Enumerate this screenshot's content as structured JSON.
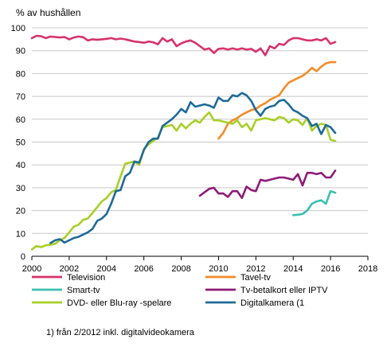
{
  "chart_data": {
    "type": "line",
    "ylabel": "% av hushållen",
    "xlim": [
      2000,
      2018
    ],
    "ylim": [
      0,
      100
    ],
    "xticks": [
      2000,
      2002,
      2004,
      2006,
      2008,
      2010,
      2012,
      2014,
      2016,
      2018
    ],
    "yticks": [
      0,
      10,
      20,
      30,
      40,
      50,
      60,
      70,
      80,
      90,
      100
    ],
    "grid": "horizontal",
    "legend_position": "bottom",
    "footnote": "1) från 2/2012 inkl. digitalvideokamera",
    "series": [
      {
        "name": "Television",
        "color": "#d6336c",
        "x": [
          2000,
          2000.25,
          2000.5,
          2000.75,
          2001,
          2001.25,
          2001.5,
          2001.75,
          2002,
          2002.25,
          2002.5,
          2002.75,
          2003,
          2003.25,
          2003.5,
          2003.75,
          2004,
          2004.25,
          2004.5,
          2004.75,
          2005,
          2005.25,
          2005.5,
          2005.75,
          2006,
          2006.25,
          2006.5,
          2006.75,
          2007,
          2007.25,
          2007.5,
          2007.75,
          2008,
          2008.25,
          2008.5,
          2008.75,
          2009,
          2009.25,
          2009.5,
          2009.75,
          2010,
          2010.25,
          2010.5,
          2010.75,
          2011,
          2011.25,
          2011.5,
          2011.75,
          2012,
          2012.25,
          2012.5,
          2012.75,
          2013,
          2013.25,
          2013.5,
          2013.75,
          2014,
          2014.25,
          2014.5,
          2014.75,
          2015,
          2015.25,
          2015.5,
          2015.75,
          2016,
          2016.25
        ],
        "values": [
          95.5,
          96.5,
          96.3,
          95.5,
          96.2,
          96.0,
          95.8,
          96.0,
          95.0,
          95.8,
          96.2,
          95.9,
          94.5,
          95.0,
          94.8,
          95.0,
          95.2,
          95.5,
          95.0,
          95.3,
          95.0,
          94.5,
          94.0,
          93.8,
          93.5,
          94.0,
          93.7,
          92.8,
          95.5,
          94.0,
          95.0,
          92.0,
          93.2,
          94.0,
          94.5,
          93.5,
          92.0,
          90.5,
          91.0,
          89.0,
          90.8,
          91.0,
          90.5,
          91.0,
          90.5,
          91.0,
          90.5,
          90.8,
          89.5,
          91.0,
          88.0,
          92.0,
          91.0,
          93.0,
          92.5,
          94.5,
          95.5,
          95.5,
          95.0,
          94.5,
          94.5,
          95.0,
          94.5,
          95.5,
          93.0,
          93.8
        ]
      },
      {
        "name": "Tavel-tv",
        "color": "#f28c28",
        "x": [
          2010,
          2010.25,
          2010.5,
          2010.75,
          2011,
          2011.25,
          2011.5,
          2011.75,
          2012,
          2012.25,
          2012.5,
          2012.75,
          2013,
          2013.25,
          2013.5,
          2013.75,
          2014,
          2014.25,
          2014.5,
          2014.75,
          2015,
          2015.25,
          2015.5,
          2015.75,
          2016,
          2016.25
        ],
        "values": [
          51.5,
          54.0,
          58.0,
          59.5,
          60.5,
          62.0,
          63.0,
          64.0,
          64.5,
          66.0,
          67.0,
          68.5,
          69.5,
          70.5,
          73.5,
          76.0,
          77.0,
          78.0,
          79.0,
          80.5,
          82.5,
          81.0,
          83.0,
          84.5,
          85.0,
          85.0
        ]
      },
      {
        "name": "Smart-tv",
        "color": "#3cbfae",
        "x": [
          2014,
          2014.25,
          2014.5,
          2014.75,
          2015,
          2015.25,
          2015.5,
          2015.75,
          2016,
          2016.25
        ],
        "values": [
          18.0,
          18.2,
          18.5,
          20.0,
          23.0,
          24.0,
          24.5,
          23.0,
          28.5,
          27.8
        ]
      },
      {
        "name": "Tv-betalkort eller IPTV",
        "color": "#8e1b78",
        "x": [
          2009,
          2009.25,
          2009.5,
          2009.75,
          2010,
          2010.25,
          2010.5,
          2010.75,
          2011,
          2011.25,
          2011.5,
          2011.75,
          2012,
          2012.25,
          2012.5,
          2012.75,
          2013,
          2013.25,
          2013.5,
          2013.75,
          2014,
          2014.25,
          2014.5,
          2014.75,
          2015,
          2015.25,
          2015.5,
          2015.75,
          2016,
          2016.25
        ],
        "values": [
          26.5,
          28.0,
          29.5,
          30.0,
          27.5,
          27.5,
          26.0,
          28.5,
          28.5,
          25.5,
          30.5,
          29.0,
          28.5,
          33.5,
          33.0,
          33.5,
          34.0,
          34.5,
          34.5,
          34.0,
          33.5,
          36.0,
          31.0,
          36.5,
          36.5,
          36.0,
          36.5,
          34.5,
          34.5,
          37.5
        ]
      },
      {
        "name": "DVD- eller Blu-ray -spelare",
        "color": "#a8cf28",
        "x": [
          2000,
          2000.25,
          2000.5,
          2000.75,
          2001,
          2001.25,
          2001.5,
          2001.75,
          2002,
          2002.25,
          2002.5,
          2002.75,
          2003,
          2003.25,
          2003.5,
          2003.75,
          2004,
          2004.25,
          2004.5,
          2004.75,
          2005,
          2005.25,
          2005.5,
          2005.75,
          2006,
          2006.25,
          2006.5,
          2006.75,
          2007,
          2007.25,
          2007.5,
          2007.75,
          2008,
          2008.25,
          2008.5,
          2008.75,
          2009,
          2009.25,
          2009.5,
          2009.75,
          2010,
          2010.25,
          2010.5,
          2010.75,
          2011,
          2011.25,
          2011.5,
          2011.75,
          2012,
          2012.25,
          2012.5,
          2012.75,
          2013,
          2013.25,
          2013.5,
          2013.75,
          2014,
          2014.25,
          2014.5,
          2014.75,
          2015,
          2015.25,
          2015.5,
          2015.75,
          2016,
          2016.25
        ],
        "values": [
          3.0,
          4.5,
          4.0,
          4.8,
          5.0,
          5.5,
          7.0,
          8.0,
          10.5,
          13.0,
          13.8,
          16.0,
          16.5,
          19.0,
          21.5,
          24.0,
          25.5,
          28.0,
          29.0,
          35.0,
          40.5,
          41.0,
          41.5,
          40.0,
          47.0,
          49.0,
          50.5,
          52.0,
          56.5,
          57.0,
          57.5,
          55.0,
          58.0,
          56.0,
          58.0,
          59.5,
          58.5,
          61.0,
          63.0,
          59.5,
          59.5,
          59.0,
          58.5,
          58.0,
          59.5,
          56.5,
          58.0,
          55.0,
          59.5,
          60.0,
          60.5,
          60.0,
          59.5,
          61.0,
          60.5,
          58.5,
          60.0,
          59.5,
          57.5,
          60.5,
          55.0,
          57.0,
          58.0,
          57.5,
          51.0,
          50.5
        ]
      },
      {
        "name": "Digitalkamera (1",
        "color": "#1f6a98",
        "x": [
          2001,
          2001.25,
          2001.5,
          2001.75,
          2002,
          2002.25,
          2002.5,
          2002.75,
          2003,
          2003.25,
          2003.5,
          2003.75,
          2004,
          2004.25,
          2004.5,
          2004.75,
          2005,
          2005.25,
          2005.5,
          2005.75,
          2006,
          2006.25,
          2006.5,
          2006.75,
          2007,
          2007.25,
          2007.5,
          2007.75,
          2008,
          2008.25,
          2008.5,
          2008.75,
          2009,
          2009.25,
          2009.5,
          2009.75,
          2010,
          2010.25,
          2010.5,
          2010.75,
          2011,
          2011.25,
          2011.5,
          2011.75,
          2012,
          2012.25,
          2012.5,
          2012.75,
          2013,
          2013.25,
          2013.5,
          2013.75,
          2014,
          2014.25,
          2014.5,
          2014.75,
          2015,
          2015.25,
          2015.5,
          2015.75,
          2016,
          2016.25
        ],
        "values": [
          5.8,
          7.0,
          7.5,
          6.0,
          7.0,
          8.0,
          8.5,
          9.5,
          10.5,
          12.0,
          15.5,
          16.5,
          18.5,
          23.0,
          28.5,
          29.0,
          35.0,
          36.5,
          41.5,
          41.0,
          46.5,
          50.0,
          51.5,
          51.5,
          57.0,
          58.5,
          60.0,
          62.0,
          64.5,
          63.0,
          67.5,
          65.5,
          66.0,
          66.5,
          66.0,
          65.0,
          69.5,
          68.0,
          68.0,
          70.5,
          70.0,
          71.5,
          70.5,
          68.0,
          64.0,
          61.5,
          64.5,
          65.5,
          66.0,
          68.0,
          68.5,
          66.5,
          64.0,
          63.0,
          61.5,
          60.5,
          57.0,
          58.0,
          53.5,
          57.5,
          56.5,
          54.0
        ]
      }
    ]
  }
}
